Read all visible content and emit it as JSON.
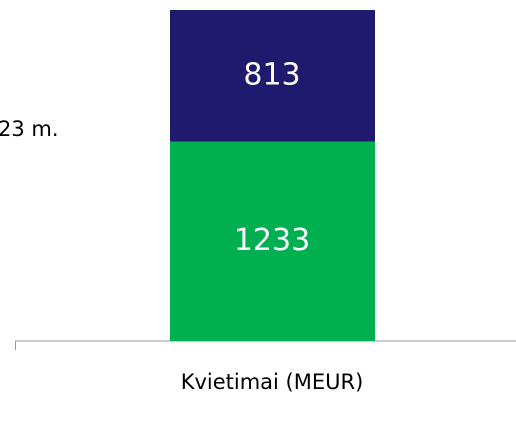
{
  "chart_data": {
    "type": "stacked_bar",
    "categories": [
      "Kvietimai (MEUR)"
    ],
    "series": [
      {
        "color": "#00b050",
        "values": [
          1233
        ]
      },
      {
        "name": "23 m.",
        "color": "#1f1a6e",
        "values": [
          813
        ]
      }
    ],
    "ylim": [
      0,
      2046
    ]
  }
}
